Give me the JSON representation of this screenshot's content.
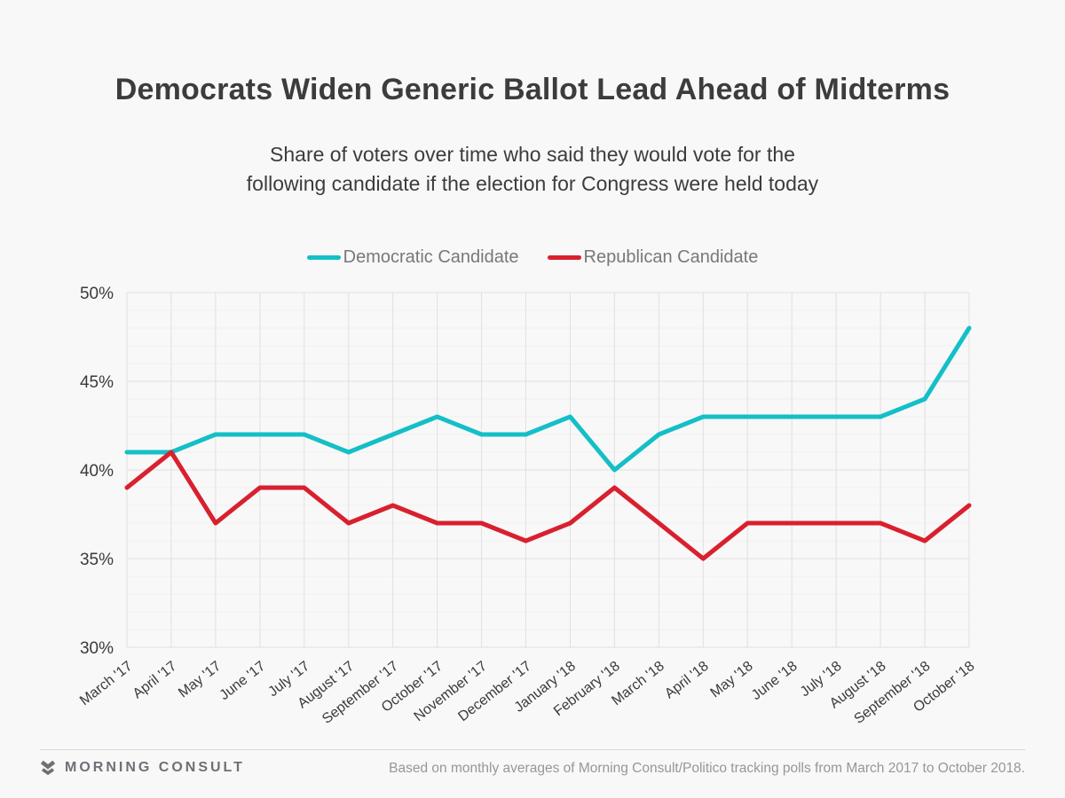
{
  "chart_data": {
    "type": "line",
    "title": "Democrats Widen Generic Ballot Lead Ahead of Midterms",
    "subtitle": "Share of voters over time who said they would vote for the\nfollowing candidate if the election for Congress were held today",
    "categories": [
      "March '17",
      "April '17",
      "May '17",
      "June '17",
      "July '17",
      "August '17",
      "September '17",
      "October '17",
      "November '17",
      "December '17",
      "January '18",
      "February '18",
      "March '18",
      "April '18",
      "May '18",
      "June '18",
      "July '18",
      "August '18",
      "September '18",
      "October '18"
    ],
    "series": [
      {
        "name": "Democratic Candidate",
        "color": "#14bfc7",
        "values": [
          41,
          41,
          42,
          42,
          42,
          41,
          42,
          43,
          42,
          42,
          43,
          40,
          42,
          43,
          43,
          43,
          43,
          43,
          44,
          48
        ]
      },
      {
        "name": "Republican Candidate",
        "color": "#d9202e",
        "values": [
          39,
          41,
          37,
          39,
          39,
          37,
          38,
          37,
          37,
          36,
          37,
          39,
          37,
          35,
          37,
          37,
          37,
          37,
          36,
          38
        ]
      }
    ],
    "xlabel": "",
    "ylabel": "",
    "ylim": [
      30,
      50
    ],
    "yticks": [
      30,
      35,
      40,
      45,
      50
    ],
    "ytick_suffix": "%",
    "grid": "vertical line per month; horizontal major every 5%, minor every 1%",
    "legend_position": "top-center"
  },
  "footer": {
    "brand": "MORNING CONSULT",
    "brand_icon": "morning-consult-m-logo",
    "note": "Based on monthly averages of Morning Consult/Politico tracking polls from March 2017 to October 2018."
  },
  "colors": {
    "background": "#f8f8f8",
    "title_text": "#3c3c3c",
    "axis_text": "#3a3a3a",
    "legend_text": "#77787b",
    "grid_major": "#e0e0e0",
    "grid_minor": "#f0f0f0",
    "divider": "#d8d8d8",
    "brand_text": "#6d7176",
    "footer_text": "#94979b"
  }
}
